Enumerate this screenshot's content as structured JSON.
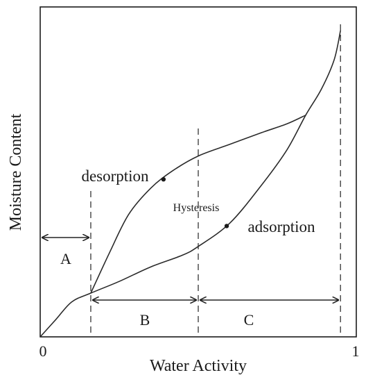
{
  "chart_data": {
    "type": "line",
    "title": "",
    "xlabel": "Water Activity",
    "ylabel": "Moisture Content",
    "xlim": [
      0,
      1
    ],
    "ylim": [
      0,
      1
    ],
    "x_tick_labels": [
      "0",
      "1"
    ],
    "grid": false,
    "legend": "none",
    "series": [
      {
        "name": "desorption",
        "x": [
          0.16,
          0.22,
          0.28,
          0.35,
          0.42,
          0.5,
          0.6,
          0.7,
          0.78,
          0.84
        ],
        "y": [
          0.15,
          0.29,
          0.42,
          0.51,
          0.57,
          0.62,
          0.66,
          0.7,
          0.73,
          0.76
        ]
      },
      {
        "name": "adsorption",
        "x": [
          0.0,
          0.05,
          0.1,
          0.16,
          0.25,
          0.35,
          0.45,
          0.5,
          0.6,
          0.7,
          0.78,
          0.84,
          0.89,
          0.93,
          0.95
        ],
        "y": [
          0.0,
          0.06,
          0.12,
          0.15,
          0.19,
          0.24,
          0.28,
          0.31,
          0.39,
          0.52,
          0.64,
          0.76,
          0.85,
          0.95,
          1.05
        ]
      }
    ],
    "vertical_dashed_lines": [
      0.16,
      0.5,
      0.95
    ],
    "regions": [
      {
        "label": "A",
        "from": 0.0,
        "to": 0.16
      },
      {
        "label": "B",
        "from": 0.16,
        "to": 0.5
      },
      {
        "label": "C",
        "from": 0.5,
        "to": 0.95
      }
    ],
    "annotations": [
      {
        "text": "desorption",
        "x": 0.24,
        "y": 0.63
      },
      {
        "text": "Hysteresis",
        "x": 0.39,
        "y": 0.47
      },
      {
        "text": "adsorption",
        "x": 0.8,
        "y": 0.41
      }
    ]
  }
}
